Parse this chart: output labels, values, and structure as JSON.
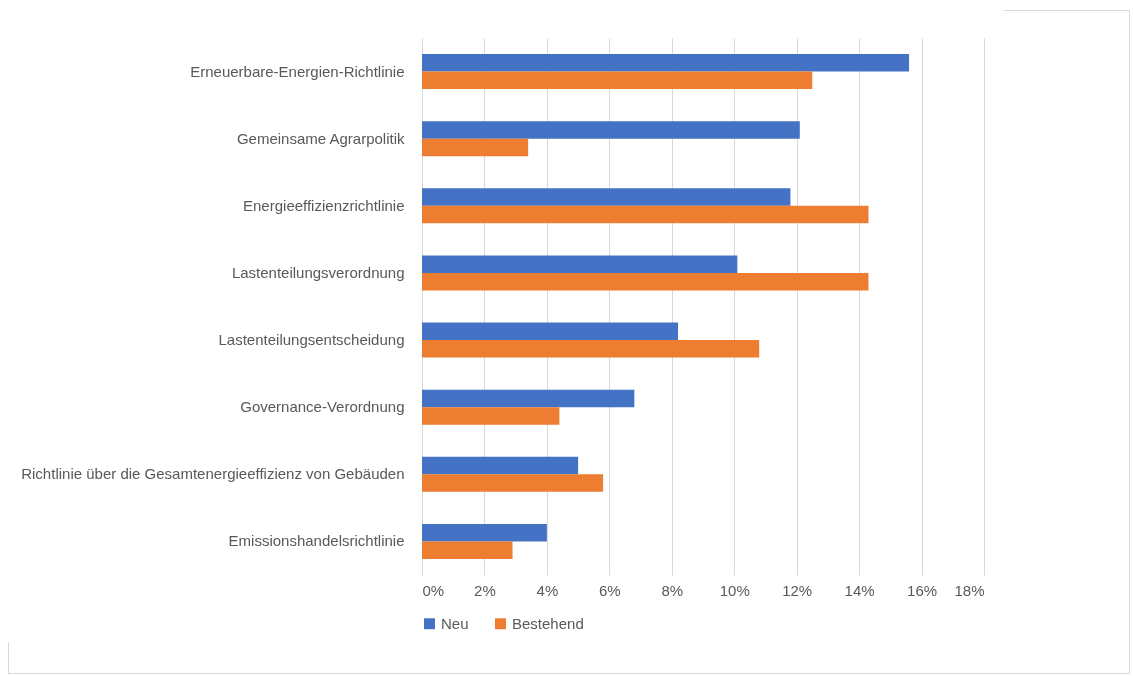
{
  "chart_data": {
    "type": "bar",
    "orientation": "horizontal",
    "categories": [
      "Erneuerbare-Energien-Richtlinie",
      "Gemeinsame Agrarpolitik",
      "Energieeffizienzrichtlinie",
      "Lastenteilungsverordnung",
      "Lastenteilungsentscheidung",
      "Governance-Verordnung",
      "Richtlinie über die Gesamtenergieeffizienz von Gebäuden",
      "Emissionshandelsrichtlinie"
    ],
    "series": [
      {
        "name": "Neu",
        "color": "#4472c4",
        "values": [
          15.6,
          12.1,
          11.8,
          10.1,
          8.2,
          6.8,
          5.0,
          4.0
        ]
      },
      {
        "name": "Bestehend",
        "color": "#ed7d31",
        "values": [
          12.5,
          3.4,
          14.3,
          14.3,
          10.8,
          4.4,
          5.8,
          2.9
        ]
      }
    ],
    "xlim": [
      0,
      18
    ],
    "xticks": [
      {
        "value": 0,
        "label": "0%"
      },
      {
        "value": 2,
        "label": "2%"
      },
      {
        "value": 4,
        "label": "4%"
      },
      {
        "value": 6,
        "label": "6%"
      },
      {
        "value": 8,
        "label": "8%"
      },
      {
        "value": 10,
        "label": "10%"
      },
      {
        "value": 12,
        "label": "12%"
      },
      {
        "value": 14,
        "label": "14%"
      },
      {
        "value": 16,
        "label": "16%"
      },
      {
        "value": 18,
        "label": "18%"
      }
    ],
    "grid": "x",
    "legend": "bottom"
  }
}
